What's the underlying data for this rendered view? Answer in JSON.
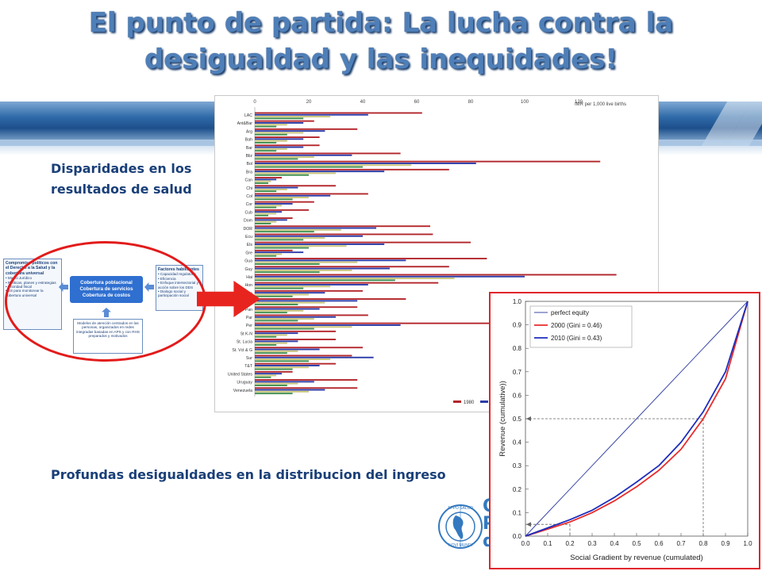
{
  "slide": {
    "title_line1": "El punto de partida: La lucha contra la",
    "title_line2": "desigualdad y las inequidades!",
    "label_disparidades_1": "Disparidades en los",
    "label_disparidades_2": "resultados de salud",
    "label_desigualdades": "Profundas desigualdades en la distribucion del ingreso"
  },
  "diagram": {
    "left_title": "Compromiso políticos con el Derecho a la Salud y la cobertura universal",
    "left_items": [
      "• Marco Jurídico",
      "• Políticas, planes y estrategias",
      "• Prioridad fiscal",
      "• SS para monitorear la cobertura universal"
    ],
    "center_lines": [
      "Cobertura poblacional",
      "Cobertura de servicios",
      "Cobertura de costos"
    ],
    "right_title": "Factores habilitantes",
    "right_items": [
      "• Capacidad regulatoria",
      "• Eficiencia",
      "• Enfoque intersectorial y acción sobre los DDS",
      "• Dialogo social y participación social"
    ],
    "bottom_text": "Modelos de atención centrados en las personas, organizados en redes integradas basadas en APS y con RHS preparados y motivados"
  },
  "logo": {
    "ring_top": "APPO SALUD",
    "ring_bottom": "NOVI MUNDI",
    "letters": [
      "O",
      "P",
      "d"
    ]
  },
  "colors": {
    "series_1980": "#b3262b",
    "series_blue": "#2a3aa8",
    "series_olive": "#c9c47a",
    "series_green": "#3e8e4f",
    "title": "#4f7fb8",
    "label": "#1a3f78",
    "frame_red": "#e0262b"
  },
  "chart_data": [
    {
      "type": "bar",
      "orientation": "horizontal",
      "title": "IMR per 1,000 live births",
      "xlim": [
        0,
        140
      ],
      "xticks": [
        0,
        20,
        40,
        60,
        80,
        100,
        120
      ],
      "categories": [
        "LAC",
        "Ant&Bar",
        "Arg",
        "Bah",
        "Bar",
        "Bliz",
        "Bol",
        "Bra",
        "Can",
        "Chi",
        "Col",
        "Cor",
        "Cub",
        "Dom",
        "DOR",
        "Ecu",
        "Els",
        "Gre",
        "Gua",
        "Guy",
        "Hai",
        "Hon",
        "Jam",
        "Mex",
        "Pan",
        "Par",
        "Per",
        "St K-N",
        "St. Lucia",
        "St. Vct & G",
        "Sur",
        "T&T",
        "United States",
        "Uruguay",
        "Venezuela"
      ],
      "legend_visible": [
        "1980"
      ],
      "series": [
        {
          "name": "1980",
          "values": [
            62,
            22,
            38,
            24,
            24,
            54,
            128,
            72,
            10,
            30,
            42,
            22,
            20,
            14,
            65,
            66,
            80,
            14,
            86,
            72,
            134,
            68,
            40,
            56,
            38,
            42,
            92,
            30,
            30,
            40,
            36,
            30,
            14,
            38,
            38
          ]
        },
        {
          "values": [
            42,
            18,
            26,
            18,
            18,
            36,
            82,
            48,
            8,
            16,
            28,
            14,
            10,
            12,
            45,
            40,
            48,
            18,
            56,
            50,
            100,
            42,
            26,
            38,
            24,
            30,
            54,
            16,
            16,
            24,
            44,
            24,
            10,
            22,
            26
          ]
        },
        {
          "values": [
            28,
            12,
            18,
            12,
            12,
            22,
            58,
            30,
            6,
            12,
            20,
            10,
            8,
            8,
            32,
            26,
            34,
            10,
            38,
            36,
            74,
            28,
            20,
            26,
            18,
            22,
            36,
            12,
            12,
            16,
            28,
            20,
            8,
            16,
            20
          ]
        },
        {
          "values": [
            18,
            8,
            12,
            8,
            8,
            16,
            40,
            20,
            5,
            8,
            14,
            8,
            5,
            6,
            22,
            18,
            20,
            8,
            24,
            24,
            52,
            18,
            14,
            16,
            12,
            16,
            22,
            8,
            8,
            12,
            20,
            14,
            6,
            12,
            14
          ]
        }
      ]
    },
    {
      "type": "line",
      "xlabel": "Social Gradient by revenue (cumulated)",
      "ylabel": "Revenue (cumulative))",
      "xlim": [
        0,
        1.0
      ],
      "ylim": [
        0,
        1.0
      ],
      "xticks": [
        "0.0",
        "0.1",
        "0.2",
        "0.3",
        "0.4",
        "0.5",
        "0.6",
        "0.7",
        "0.8",
        "0.9",
        "1.0"
      ],
      "yticks": [
        "0.0",
        "0.1",
        "0.2",
        "0.3",
        "0.4",
        "0.5",
        "0.6",
        "0.7",
        "0.8",
        "0.9",
        "1.0"
      ],
      "legend_position": "top-left",
      "x": [
        0,
        0.1,
        0.2,
        0.3,
        0.4,
        0.5,
        0.6,
        0.7,
        0.8,
        0.9,
        1.0
      ],
      "series": [
        {
          "name": "perfect equity",
          "values": [
            0,
            0.1,
            0.2,
            0.3,
            0.4,
            0.5,
            0.6,
            0.7,
            0.8,
            0.9,
            1.0
          ]
        },
        {
          "name": "2000 (Gini = 0.46)",
          "values": [
            0,
            0.03,
            0.06,
            0.1,
            0.15,
            0.21,
            0.28,
            0.37,
            0.5,
            0.67,
            1.0
          ]
        },
        {
          "name": "2010 (Gini = 0.43)",
          "values": [
            0,
            0.035,
            0.07,
            0.11,
            0.165,
            0.23,
            0.3,
            0.4,
            0.53,
            0.7,
            1.0
          ]
        }
      ],
      "annotations": [
        {
          "x": 0.2,
          "y": 0.05
        },
        {
          "x": 0.8,
          "y": 0.5
        }
      ]
    }
  ]
}
